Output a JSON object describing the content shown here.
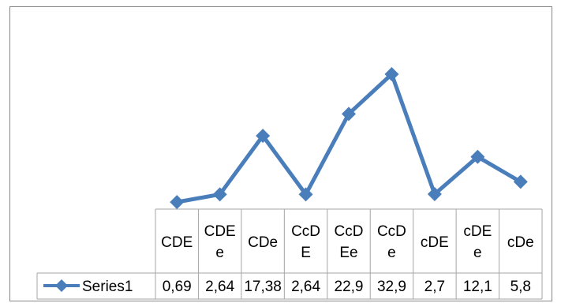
{
  "chart_data": {
    "type": "line",
    "title": "",
    "xlabel": "",
    "ylabel": "",
    "categories": [
      [
        "CDE"
      ],
      [
        "CDE",
        "e"
      ],
      [
        "CDe"
      ],
      [
        "CcD",
        "E"
      ],
      [
        "CcD",
        "Ee"
      ],
      [
        "CcD",
        "e"
      ],
      [
        "cDE"
      ],
      [
        "cDE",
        "e"
      ],
      [
        "cDe"
      ]
    ],
    "series": [
      {
        "name": "Series1",
        "values": [
          0.69,
          2.64,
          17.38,
          2.64,
          22.9,
          32.9,
          2.7,
          12.1,
          5.8
        ],
        "value_labels": [
          "0,69",
          "2,64",
          "17,38",
          "2,64",
          "22,9",
          "32,9",
          "2,7",
          "12,1",
          "5,8"
        ],
        "error": [
          0,
          0,
          0.5,
          0,
          0.6,
          0.8,
          0,
          0.4,
          0
        ]
      }
    ],
    "ylim": [
      -1.07,
      48
    ],
    "grid": false,
    "legend": "data-table",
    "data_table": true,
    "colors": {
      "series": "#4a7ebb",
      "border": "#868686",
      "table_line": "#a6a6a6",
      "text": "#000000"
    }
  }
}
